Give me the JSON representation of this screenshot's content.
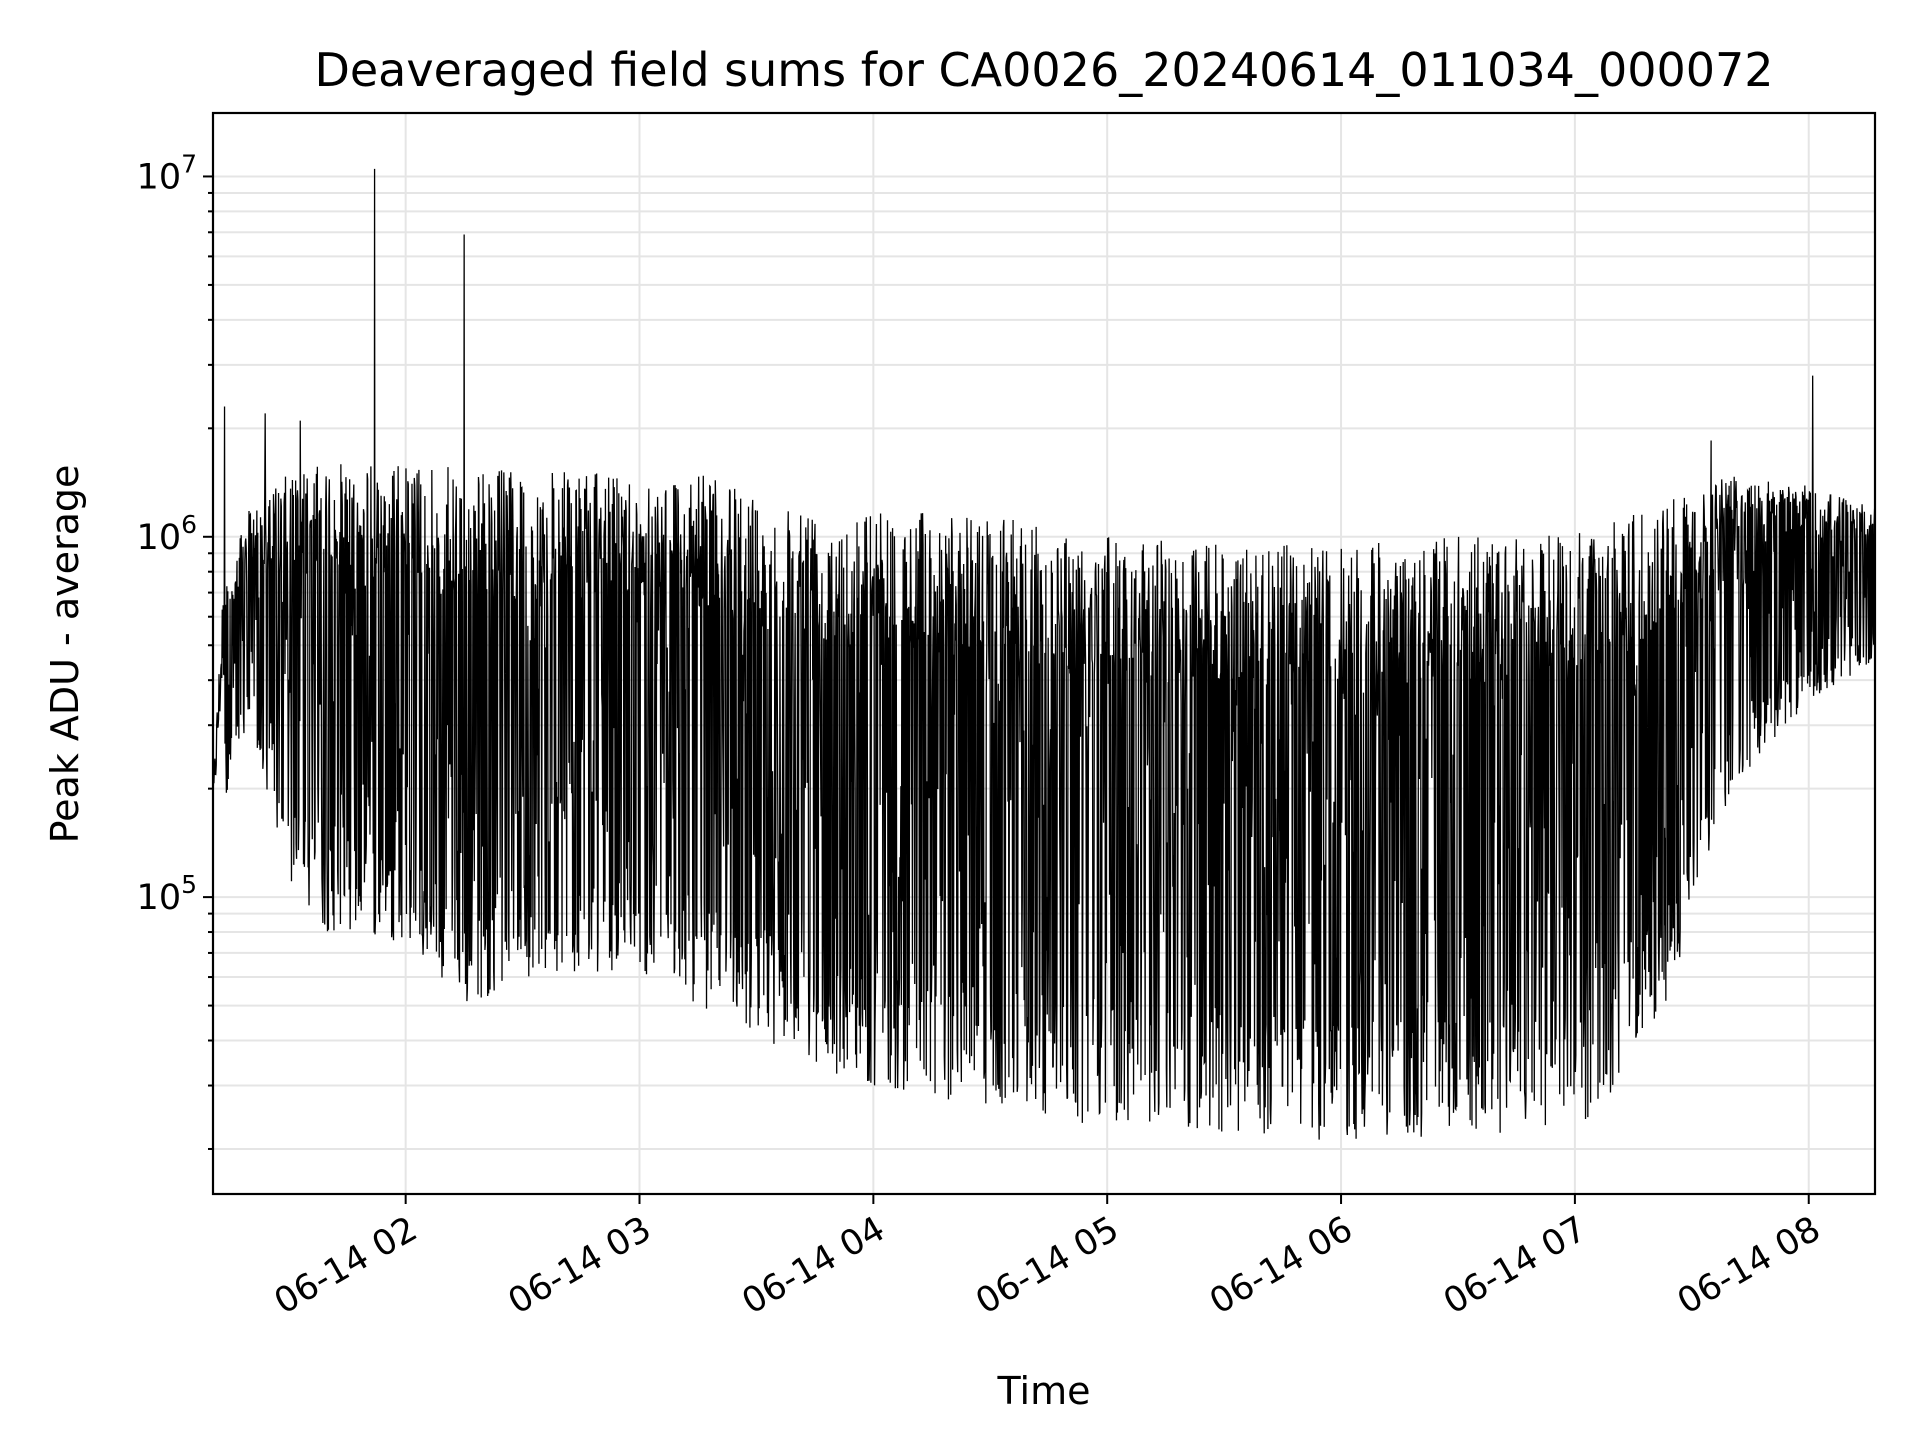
{
  "chart_data": {
    "type": "line",
    "title": "Deaveraged field sums for CA0026_20240614_011034_000072",
    "xlabel": "Time",
    "ylabel": "Peak ADU - average",
    "yscale": "log",
    "xlim": [
      "2024-06-14T01:10:34",
      "2024-06-14T08:17:00"
    ],
    "ylim": [
      15000,
      15000000
    ],
    "x_ticks": [
      {
        "value": "2024-06-14T02:00:00",
        "label": "06-14 02"
      },
      {
        "value": "2024-06-14T03:00:00",
        "label": "06-14 03"
      },
      {
        "value": "2024-06-14T04:00:00",
        "label": "06-14 04"
      },
      {
        "value": "2024-06-14T05:00:00",
        "label": "06-14 05"
      },
      {
        "value": "2024-06-14T06:00:00",
        "label": "06-14 06"
      },
      {
        "value": "2024-06-14T07:00:00",
        "label": "06-14 07"
      },
      {
        "value": "2024-06-14T08:00:00",
        "label": "06-14 08"
      }
    ],
    "y_ticks": [
      {
        "value": 100000,
        "base": "10",
        "exp": "5"
      },
      {
        "value": 1000000,
        "base": "10",
        "exp": "6"
      },
      {
        "value": 10000000,
        "base": "10",
        "exp": "7"
      }
    ],
    "grid": true,
    "line_color": "#000000",
    "envelope": [
      {
        "t": "2024-06-14T01:10:34",
        "top": 200000,
        "bottom": 120000
      },
      {
        "t": "2024-06-14T01:13:00",
        "top": 700000,
        "bottom": 180000
      },
      {
        "t": "2024-06-14T01:20:00",
        "top": 1200000,
        "bottom": 300000
      },
      {
        "t": "2024-06-14T01:30:00",
        "top": 1500000,
        "bottom": 110000
      },
      {
        "t": "2024-06-14T01:40:00",
        "top": 1600000,
        "bottom": 80000
      },
      {
        "t": "2024-06-14T02:00:00",
        "top": 1600000,
        "bottom": 75000
      },
      {
        "t": "2024-06-14T02:15:00",
        "top": 1550000,
        "bottom": 48000
      },
      {
        "t": "2024-06-14T02:30:00",
        "top": 1550000,
        "bottom": 60000
      },
      {
        "t": "2024-06-14T02:45:00",
        "top": 1500000,
        "bottom": 62000
      },
      {
        "t": "2024-06-14T03:00:00",
        "top": 1500000,
        "bottom": 62000
      },
      {
        "t": "2024-06-14T03:15:00",
        "top": 1500000,
        "bottom": 50000
      },
      {
        "t": "2024-06-14T03:30:00",
        "top": 1300000,
        "bottom": 42000
      },
      {
        "t": "2024-06-14T03:45:00",
        "top": 1250000,
        "bottom": 33000
      },
      {
        "t": "2024-06-14T04:00:00",
        "top": 1200000,
        "bottom": 30000
      },
      {
        "t": "2024-06-14T04:30:00",
        "top": 1150000,
        "bottom": 26000
      },
      {
        "t": "2024-06-14T05:00:00",
        "top": 1000000,
        "bottom": 23000
      },
      {
        "t": "2024-06-14T05:30:00",
        "top": 950000,
        "bottom": 22000
      },
      {
        "t": "2024-06-14T06:00:00",
        "top": 950000,
        "bottom": 21000
      },
      {
        "t": "2024-06-14T06:30:00",
        "top": 1000000,
        "bottom": 21000
      },
      {
        "t": "2024-06-14T06:50:00",
        "top": 1000000,
        "bottom": 22000
      },
      {
        "t": "2024-06-14T07:05:00",
        "top": 1050000,
        "bottom": 24000
      },
      {
        "t": "2024-06-14T07:25:00",
        "top": 1300000,
        "bottom": 55000
      },
      {
        "t": "2024-06-14T07:40:00",
        "top": 1500000,
        "bottom": 200000
      },
      {
        "t": "2024-06-14T08:00:00",
        "top": 1400000,
        "bottom": 350000
      },
      {
        "t": "2024-06-14T08:17:00",
        "top": 1200000,
        "bottom": 450000
      }
    ],
    "spikes": [
      {
        "t": "2024-06-14T01:13:30",
        "value": 2300000
      },
      {
        "t": "2024-06-14T01:24:00",
        "value": 2200000
      },
      {
        "t": "2024-06-14T01:33:00",
        "value": 2100000
      },
      {
        "t": "2024-06-14T01:52:00",
        "value": 10500000
      },
      {
        "t": "2024-06-14T02:15:00",
        "value": 6900000
      },
      {
        "t": "2024-06-14T08:01:00",
        "value": 2800000
      },
      {
        "t": "2024-06-14T07:35:00",
        "value": 1850000
      }
    ]
  }
}
